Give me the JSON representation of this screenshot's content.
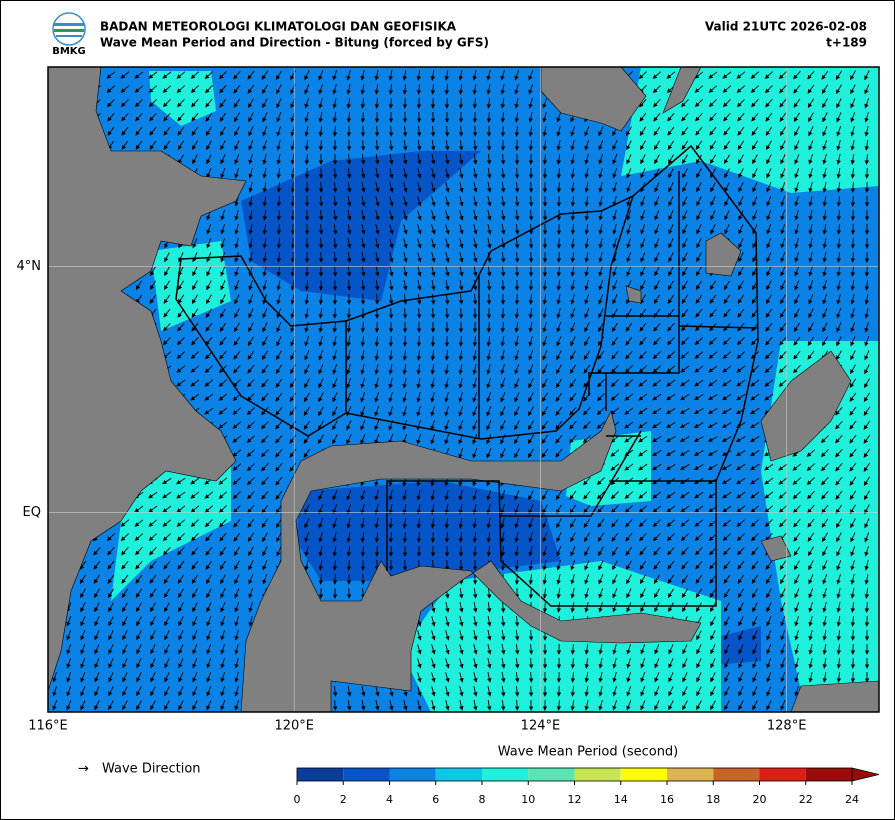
{
  "header": {
    "logo": "BMKG",
    "title": "BADAN METEOROLOGI KLIMATOLOGI DAN GEOFISIKA",
    "subtitle": "Wave Mean Period and Direction - Bitung (forced by GFS)",
    "valid": "Valid 21UTC 2026-02-08",
    "step": "t+189"
  },
  "map": {
    "xlim": [
      116,
      129.5
    ],
    "ylim": [
      -3.25,
      7.25
    ],
    "xticks": [
      {
        "value": 116,
        "label": "116°E"
      },
      {
        "value": 120,
        "label": "120°E"
      },
      {
        "value": 124,
        "label": "124°E"
      },
      {
        "value": 128,
        "label": "128°E"
      }
    ],
    "yticks": [
      {
        "value": 4,
        "label": "4°N"
      },
      {
        "value": 0,
        "label": "EQ"
      }
    ]
  },
  "legend": {
    "arrow": "→",
    "label": "Wave Direction"
  },
  "colorbar": {
    "title": "Wave Mean Period (second)",
    "ticks": [
      0,
      2,
      4,
      6,
      8,
      10,
      12,
      14,
      16,
      18,
      20,
      22,
      24
    ],
    "colors": [
      "#0a3c9c",
      "#0655c8",
      "#0a82e6",
      "#0ac8e6",
      "#1ef0dc",
      "#5ae6b4",
      "#c8e650",
      "#ffff00",
      "#dcb450",
      "#c86428",
      "#dc1e14",
      "#9b0a0a"
    ]
  }
}
